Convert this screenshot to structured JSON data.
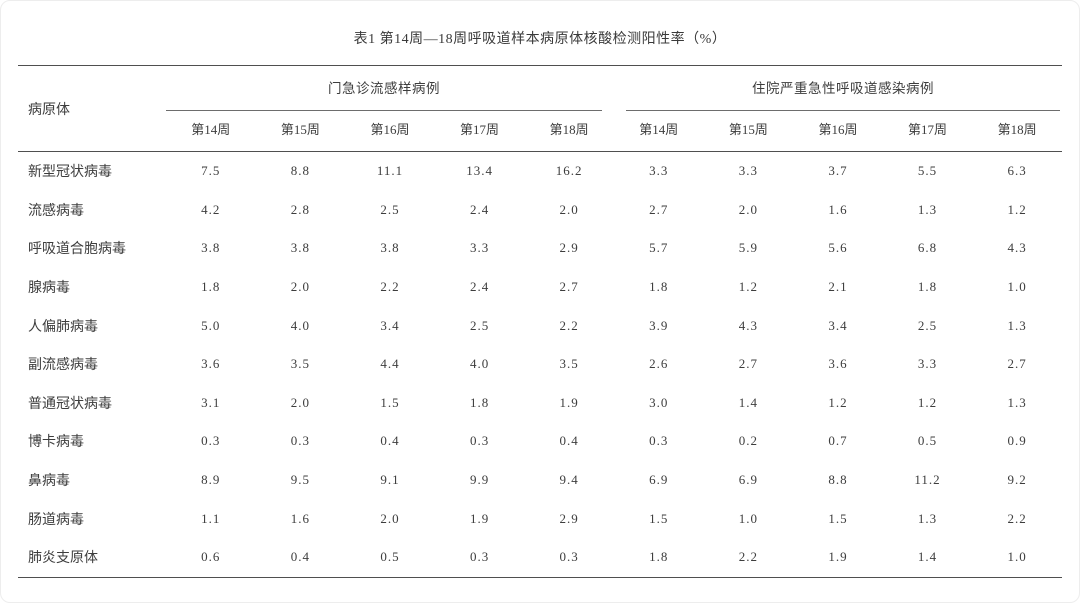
{
  "title": "表1  第14周—18周呼吸道样本病原体核酸检测阳性率（%）",
  "colors": {
    "background": "#ffffff",
    "text": "#3d3d3d",
    "rule_heavy": "#4f4f4f",
    "rule_light": "#6d6d6d"
  },
  "table": {
    "pathogen_header": "病原体",
    "groups": [
      {
        "label": "门急诊流感样病例",
        "weeks": [
          "第14周",
          "第15周",
          "第16周",
          "第17周",
          "第18周"
        ]
      },
      {
        "label": "住院严重急性呼吸道感染病例",
        "weeks": [
          "第14周",
          "第15周",
          "第16周",
          "第17周",
          "第18周"
        ]
      }
    ],
    "rows": [
      {
        "pathogen": "新型冠状病毒",
        "ili": [
          "7.5",
          "8.8",
          "11.1",
          "13.4",
          "16.2"
        ],
        "sari": [
          "3.3",
          "3.3",
          "3.7",
          "5.5",
          "6.3"
        ]
      },
      {
        "pathogen": "流感病毒",
        "ili": [
          "4.2",
          "2.8",
          "2.5",
          "2.4",
          "2.0"
        ],
        "sari": [
          "2.7",
          "2.0",
          "1.6",
          "1.3",
          "1.2"
        ]
      },
      {
        "pathogen": "呼吸道合胞病毒",
        "ili": [
          "3.8",
          "3.8",
          "3.8",
          "3.3",
          "2.9"
        ],
        "sari": [
          "5.7",
          "5.9",
          "5.6",
          "6.8",
          "4.3"
        ]
      },
      {
        "pathogen": "腺病毒",
        "ili": [
          "1.8",
          "2.0",
          "2.2",
          "2.4",
          "2.7"
        ],
        "sari": [
          "1.8",
          "1.2",
          "2.1",
          "1.8",
          "1.0"
        ]
      },
      {
        "pathogen": "人偏肺病毒",
        "ili": [
          "5.0",
          "4.0",
          "3.4",
          "2.5",
          "2.2"
        ],
        "sari": [
          "3.9",
          "4.3",
          "3.4",
          "2.5",
          "1.3"
        ]
      },
      {
        "pathogen": "副流感病毒",
        "ili": [
          "3.6",
          "3.5",
          "4.4",
          "4.0",
          "3.5"
        ],
        "sari": [
          "2.6",
          "2.7",
          "3.6",
          "3.3",
          "2.7"
        ]
      },
      {
        "pathogen": "普通冠状病毒",
        "ili": [
          "3.1",
          "2.0",
          "1.5",
          "1.8",
          "1.9"
        ],
        "sari": [
          "3.0",
          "1.4",
          "1.2",
          "1.2",
          "1.3"
        ]
      },
      {
        "pathogen": "博卡病毒",
        "ili": [
          "0.3",
          "0.3",
          "0.4",
          "0.3",
          "0.4"
        ],
        "sari": [
          "0.3",
          "0.2",
          "0.7",
          "0.5",
          "0.9"
        ]
      },
      {
        "pathogen": "鼻病毒",
        "ili": [
          "8.9",
          "9.5",
          "9.1",
          "9.9",
          "9.4"
        ],
        "sari": [
          "6.9",
          "6.9",
          "8.8",
          "11.2",
          "9.2"
        ]
      },
      {
        "pathogen": "肠道病毒",
        "ili": [
          "1.1",
          "1.6",
          "2.0",
          "1.9",
          "2.9"
        ],
        "sari": [
          "1.5",
          "1.0",
          "1.5",
          "1.3",
          "2.2"
        ]
      },
      {
        "pathogen": "肺炎支原体",
        "ili": [
          "0.6",
          "0.4",
          "0.5",
          "0.3",
          "0.3"
        ],
        "sari": [
          "1.8",
          "2.2",
          "1.9",
          "1.4",
          "1.0"
        ]
      }
    ]
  }
}
